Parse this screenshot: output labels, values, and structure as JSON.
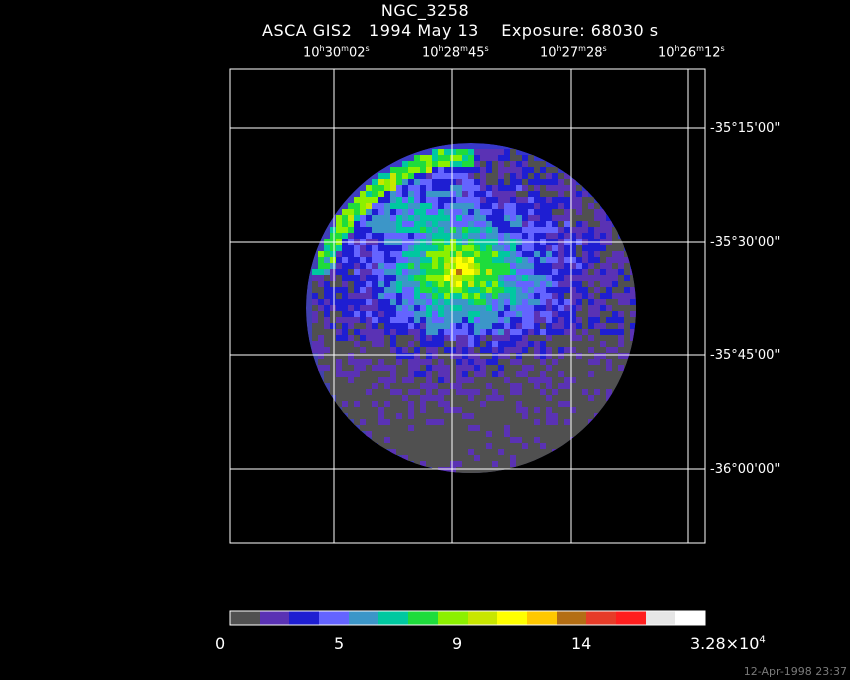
{
  "header": {
    "object": "NGC_3258",
    "subtitle_instrument": "ASCA GIS2",
    "subtitle_date": "1994 May 13",
    "subtitle_exposure": "Exposure: 68030 s"
  },
  "ra_axis": {
    "ticks": [
      {
        "h": "10",
        "hu": "h",
        "m": "30",
        "mu": "m",
        "s": "02",
        "su": "s"
      },
      {
        "h": "10",
        "hu": "h",
        "m": "28",
        "mu": "m",
        "s": "45",
        "su": "s"
      },
      {
        "h": "10",
        "hu": "h",
        "m": "27",
        "mu": "m",
        "s": "28",
        "su": "s"
      },
      {
        "h": "10",
        "hu": "h",
        "m": "26",
        "mu": "m",
        "s": "12",
        "su": "s"
      }
    ]
  },
  "dec_axis": {
    "ticks": [
      "-35°15'00\"",
      "-35°30'00\"",
      "-35°45'00\"",
      "-36°00'00\""
    ]
  },
  "colorbar": {
    "colors": [
      "#505050",
      "#5a32b4",
      "#1e1ed2",
      "#6464ff",
      "#3c96c8",
      "#00c8a0",
      "#1edc3c",
      "#8cf000",
      "#c8e600",
      "#ffff00",
      "#ffc800",
      "#b46e14",
      "#e63c28",
      "#ff1e1e",
      "#e6e6e6",
      "#ffffff"
    ],
    "labels": [
      {
        "text": "0",
        "sup": ""
      },
      {
        "text": "5",
        "sup": ""
      },
      {
        "text": "9",
        "sup": ""
      },
      {
        "text": "14",
        "sup": ""
      },
      {
        "text": "3.28×10",
        "sup": "4"
      }
    ]
  },
  "footer": {
    "timestamp": "12-Apr-1998 23:37"
  }
}
